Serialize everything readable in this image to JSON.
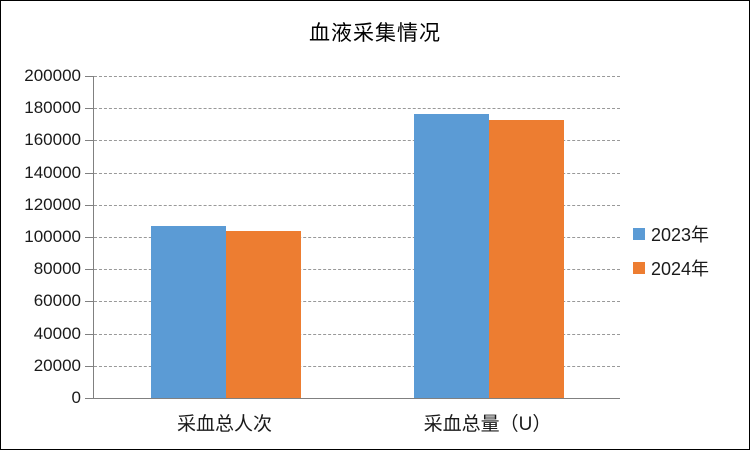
{
  "chart_data": {
    "type": "bar",
    "title": "血液采集情况",
    "categories": [
      "采血总人次",
      "采血总量（U）"
    ],
    "series": [
      {
        "name": "2023年",
        "color": "#5B9BD5",
        "values": [
          107000,
          176500
        ]
      },
      {
        "name": "2024年",
        "color": "#ED7D31",
        "values": [
          104000,
          172500
        ]
      }
    ],
    "y_axis": {
      "min": 0,
      "max": 200000,
      "step": 20000
    },
    "xlabel": "",
    "ylabel": "",
    "grid": true,
    "legend_position": "right",
    "axis_color": "#808080",
    "gridline_color": "#999999",
    "text_color": "#1a1a1a"
  }
}
